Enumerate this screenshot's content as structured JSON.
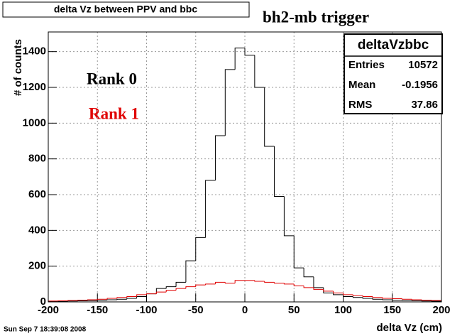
{
  "chart_data": {
    "type": "histogram",
    "title": "delta Vz between PPV  and bbc",
    "subtitle": "bh2-mb trigger",
    "x_label": "delta Vz (cm)",
    "y_label": "# of counts",
    "timestamp": "Sun Sep  7 18:39:08 2008",
    "annotations": [
      {
        "text": "Rank 0",
        "color": "#000000"
      },
      {
        "text": "Rank 1",
        "color": "#e00000"
      }
    ],
    "stats": {
      "title": "deltaVzbbc",
      "rows": [
        [
          "Entries",
          10572
        ],
        [
          "Mean",
          -0.1956
        ],
        [
          "RMS",
          37.86
        ]
      ]
    },
    "bins": [
      -200,
      -190,
      -180,
      -170,
      -160,
      -150,
      -140,
      -130,
      -120,
      -110,
      -100,
      -90,
      -80,
      -70,
      -60,
      -50,
      -40,
      -30,
      -20,
      -10,
      0,
      10,
      20,
      30,
      40,
      50,
      60,
      70,
      80,
      90,
      100,
      110,
      120,
      130,
      140,
      150,
      160,
      170,
      180,
      190,
      200
    ],
    "series": [
      {
        "name": "Rank 0",
        "color": "#000000",
        "values": [
          3,
          4,
          5,
          6,
          8,
          10,
          12,
          15,
          20,
          30,
          45,
          75,
          85,
          110,
          230,
          360,
          680,
          930,
          1300,
          1420,
          1380,
          1200,
          870,
          590,
          370,
          190,
          140,
          80,
          50,
          40,
          30,
          25,
          20,
          15,
          12,
          10,
          8,
          6,
          5,
          4
        ]
      },
      {
        "name": "Rank 1",
        "color": "#e00000",
        "values": [
          5,
          6,
          8,
          10,
          12,
          15,
          20,
          25,
          30,
          40,
          45,
          55,
          65,
          75,
          85,
          95,
          100,
          110,
          105,
          120,
          120,
          115,
          110,
          105,
          100,
          90,
          80,
          70,
          60,
          50,
          40,
          35,
          30,
          25,
          20,
          18,
          15,
          12,
          10,
          8
        ]
      }
    ],
    "xlim": [
      -200,
      200
    ],
    "ylim": [
      0,
      1510
    ],
    "xticks": [
      -200,
      -150,
      -100,
      -50,
      0,
      50,
      100,
      150,
      200
    ],
    "yticks": [
      0,
      200,
      400,
      600,
      800,
      1000,
      1200,
      1400
    ],
    "grid": true
  }
}
